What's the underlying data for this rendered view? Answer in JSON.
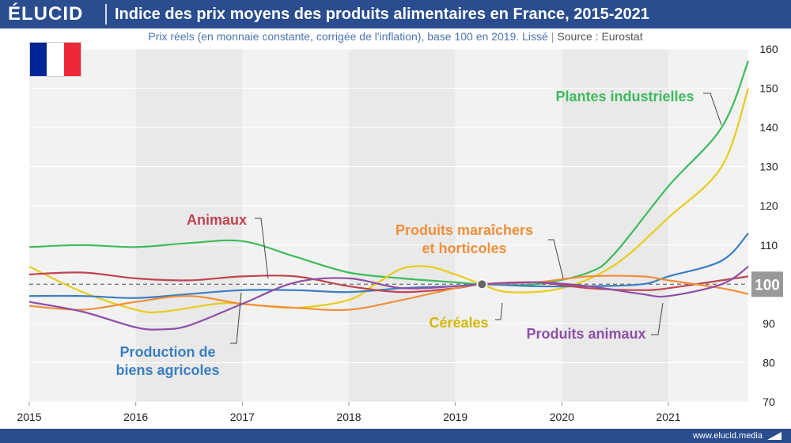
{
  "brand": "ÉLUCID",
  "title": "Indice des prix moyens des produits alimentaires en France, 2015-2021",
  "subtitle": "Prix réels (en monnaie constante, corrigée de l'inflation), base 100 en 2019. Lissé",
  "source": "Source : Eurostat",
  "footer_url": "www.elucid.media",
  "flag_colors": [
    "#002395",
    "#ffffff",
    "#ed2939"
  ],
  "chart_data": {
    "type": "line",
    "x_ticks": [
      "2015",
      "2016",
      "2017",
      "2018",
      "2019",
      "2020",
      "2021"
    ],
    "y_ticks": [
      "70",
      "80",
      "90",
      "100",
      "110",
      "120",
      "130",
      "140",
      "150",
      "160"
    ],
    "xlim": [
      2015,
      2021.75
    ],
    "ylim": [
      70,
      160
    ],
    "baseline": 100,
    "baseline_label": "100",
    "reference_point": {
      "x": 2019.25,
      "y": 100
    },
    "grid": "alternating-year-bands",
    "series": [
      {
        "name": "Plantes industrielles",
        "color": "#3dbb5c",
        "points": [
          [
            2015,
            109.5
          ],
          [
            2015.5,
            110
          ],
          [
            2016,
            109.5
          ],
          [
            2016.5,
            110.5
          ],
          [
            2017,
            111
          ],
          [
            2017.5,
            107
          ],
          [
            2018,
            103
          ],
          [
            2018.5,
            101.5
          ],
          [
            2019,
            100.5
          ],
          [
            2019.25,
            100
          ],
          [
            2019.75,
            100
          ],
          [
            2020.25,
            103
          ],
          [
            2020.5,
            108
          ],
          [
            2021,
            125
          ],
          [
            2021.5,
            140
          ],
          [
            2021.75,
            157
          ]
        ]
      },
      {
        "name": "Céréales",
        "color": "#e8cc1c",
        "points": [
          [
            2015,
            104.5
          ],
          [
            2015.5,
            98
          ],
          [
            2016,
            93.5
          ],
          [
            2016.25,
            93
          ],
          [
            2016.75,
            95
          ],
          [
            2017,
            95
          ],
          [
            2017.5,
            94
          ],
          [
            2018,
            96
          ],
          [
            2018.25,
            100
          ],
          [
            2018.5,
            104
          ],
          [
            2018.75,
            104.5
          ],
          [
            2019,
            102.5
          ],
          [
            2019.25,
            100
          ],
          [
            2019.5,
            98
          ],
          [
            2020,
            99
          ],
          [
            2020.5,
            105
          ],
          [
            2021,
            117
          ],
          [
            2021.5,
            130
          ],
          [
            2021.75,
            150
          ]
        ]
      },
      {
        "name": "Production de biens agricoles",
        "color": "#3a7ec2",
        "points": [
          [
            2015,
            97
          ],
          [
            2015.5,
            97
          ],
          [
            2016,
            96.5
          ],
          [
            2016.5,
            97.5
          ],
          [
            2017,
            98.5
          ],
          [
            2017.5,
            98.5
          ],
          [
            2018,
            98
          ],
          [
            2018.5,
            99
          ],
          [
            2019,
            99.5
          ],
          [
            2019.25,
            100
          ],
          [
            2019.75,
            99.5
          ],
          [
            2020.25,
            99.5
          ],
          [
            2020.75,
            100
          ],
          [
            2021,
            102
          ],
          [
            2021.5,
            106
          ],
          [
            2021.75,
            113
          ]
        ]
      },
      {
        "name": "Animaux",
        "color": "#c0444f",
        "points": [
          [
            2015,
            102.5
          ],
          [
            2015.5,
            103
          ],
          [
            2016,
            101.5
          ],
          [
            2016.5,
            101
          ],
          [
            2017,
            102
          ],
          [
            2017.5,
            102
          ],
          [
            2018,
            99.5
          ],
          [
            2018.5,
            98
          ],
          [
            2019,
            99
          ],
          [
            2019.25,
            100
          ],
          [
            2019.75,
            100.5
          ],
          [
            2020.25,
            99
          ],
          [
            2020.75,
            98.5
          ],
          [
            2021,
            99
          ],
          [
            2021.5,
            101
          ],
          [
            2021.75,
            102
          ]
        ]
      },
      {
        "name": "Produits maraîchers et horticoles",
        "color": "#f08f3a",
        "points": [
          [
            2015,
            94.5
          ],
          [
            2015.5,
            93.5
          ],
          [
            2016,
            95.5
          ],
          [
            2016.5,
            97
          ],
          [
            2017,
            95
          ],
          [
            2017.5,
            94
          ],
          [
            2018,
            93.5
          ],
          [
            2018.5,
            96
          ],
          [
            2019,
            99
          ],
          [
            2019.25,
            100
          ],
          [
            2019.75,
            100.5
          ],
          [
            2020.25,
            102
          ],
          [
            2020.75,
            102
          ],
          [
            2021,
            101
          ],
          [
            2021.5,
            99
          ],
          [
            2021.75,
            97.5
          ]
        ]
      },
      {
        "name": "Produits animaux",
        "color": "#8e4fa8",
        "points": [
          [
            2015,
            95.5
          ],
          [
            2015.5,
            93
          ],
          [
            2016,
            89
          ],
          [
            2016.25,
            88.5
          ],
          [
            2016.5,
            89.5
          ],
          [
            2017,
            95
          ],
          [
            2017.5,
            100.5
          ],
          [
            2018,
            101.5
          ],
          [
            2018.5,
            99
          ],
          [
            2019,
            99.5
          ],
          [
            2019.25,
            100
          ],
          [
            2019.75,
            100.5
          ],
          [
            2020.25,
            99.5
          ],
          [
            2020.75,
            97.5
          ],
          [
            2021,
            97
          ],
          [
            2021.5,
            100
          ],
          [
            2021.75,
            104.5
          ]
        ]
      }
    ],
    "labels": [
      {
        "text": [
          "Plantes industrielles"
        ],
        "color": "#3dbb5c"
      },
      {
        "text": [
          "Animaux"
        ],
        "color": "#c0444f"
      },
      {
        "text": [
          "Produits maraîchers",
          "et horticoles"
        ],
        "color": "#f08f3a"
      },
      {
        "text": [
          "Céréales"
        ],
        "color": "#d4b800"
      },
      {
        "text": [
          "Produits animaux"
        ],
        "color": "#8e4fa8"
      },
      {
        "text": [
          "Production de",
          "biens agricoles"
        ],
        "color": "#3a7ec2"
      }
    ]
  }
}
